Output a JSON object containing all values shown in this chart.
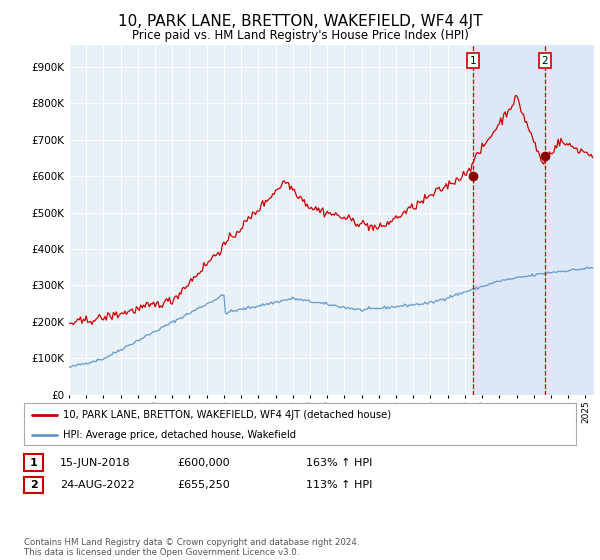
{
  "title": "10, PARK LANE, BRETTON, WAKEFIELD, WF4 4JT",
  "subtitle": "Price paid vs. HM Land Registry's House Price Index (HPI)",
  "title_fontsize": 11,
  "subtitle_fontsize": 8.5,
  "background_color": "#ffffff",
  "plot_bg_color": "#e8f0f8",
  "grid_color": "#ffffff",
  "red_line_color": "#cc0000",
  "blue_line_color": "#6699cc",
  "highlight_bg": "#dce8f5",
  "sale1_date_num": 2018.46,
  "sale1_price": 600000,
  "sale1_label": "1",
  "sale2_date_num": 2022.65,
  "sale2_price": 655250,
  "sale2_label": "2",
  "yticks": [
    0,
    100000,
    200000,
    300000,
    400000,
    500000,
    600000,
    700000,
    800000,
    900000
  ],
  "ytick_labels": [
    "£0",
    "£100K",
    "£200K",
    "£300K",
    "£400K",
    "£500K",
    "£600K",
    "£700K",
    "£800K",
    "£900K"
  ],
  "xmin": 1995.0,
  "xmax": 2025.5,
  "ymin": 0,
  "ymax": 960000,
  "legend1_label": "10, PARK LANE, BRETTON, WAKEFIELD, WF4 4JT (detached house)",
  "legend2_label": "HPI: Average price, detached house, Wakefield",
  "table_row1": [
    "1",
    "15-JUN-2018",
    "£600,000",
    "163% ↑ HPI"
  ],
  "table_row2": [
    "2",
    "24-AUG-2022",
    "£655,250",
    "113% ↑ HPI"
  ],
  "footer": "Contains HM Land Registry data © Crown copyright and database right 2024.\nThis data is licensed under the Open Government Licence v3.0."
}
